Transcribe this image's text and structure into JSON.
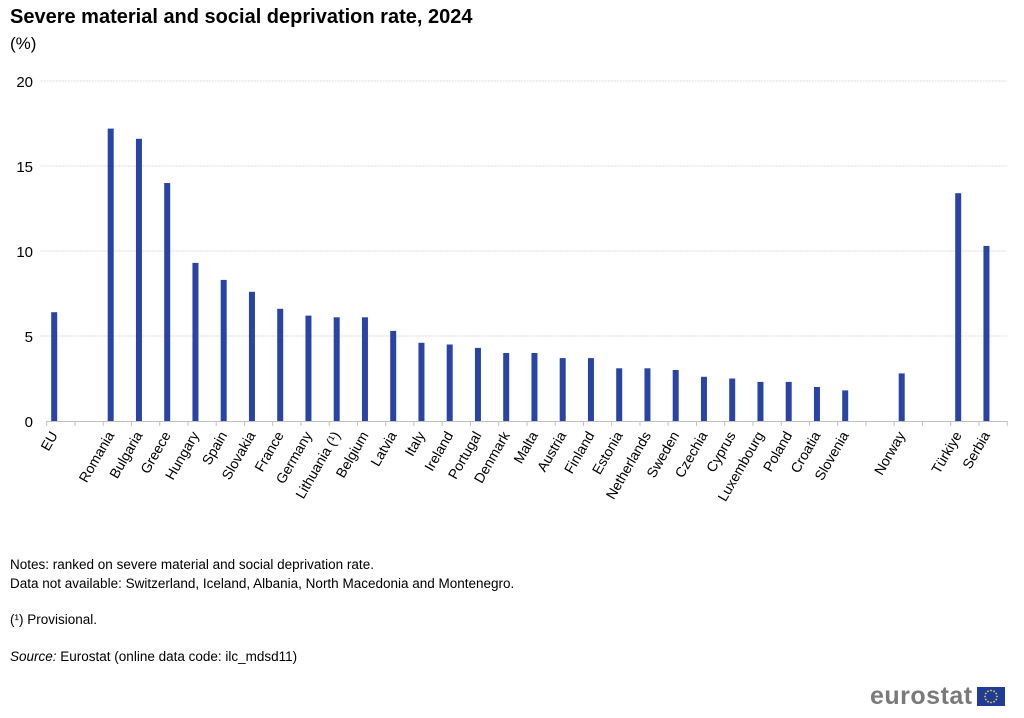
{
  "chart_data": {
    "type": "bar",
    "title": "Severe material and social deprivation rate, 2024",
    "subtitle": "(%)",
    "categories": [
      "EU",
      "",
      "Romania",
      "Bulgaria",
      "Greece",
      "Hungary",
      "Spain",
      "Slovakia",
      "France",
      "Germany",
      "Lithuania (¹)",
      "Belgium",
      "Latvia",
      "Italy",
      "Ireland",
      "Portugal",
      "Denmark",
      "Malta",
      "Austria",
      "Finland",
      "Estonia",
      "Netherlands",
      "Sweden",
      "Czechia",
      "Cyprus",
      "Luxembourg",
      "Poland",
      "Croatia",
      "Slovenia",
      "",
      "Norway",
      "",
      "Türkiye",
      "Serbia"
    ],
    "values": [
      6.4,
      null,
      17.2,
      16.6,
      14.0,
      9.3,
      8.3,
      7.6,
      6.6,
      6.2,
      6.1,
      6.1,
      5.3,
      4.6,
      4.5,
      4.3,
      4.0,
      4.0,
      3.7,
      3.7,
      3.1,
      3.1,
      3.0,
      2.6,
      2.5,
      2.3,
      2.3,
      2.0,
      1.8,
      null,
      2.8,
      null,
      13.4,
      10.3
    ],
    "ylim": [
      0,
      20
    ],
    "yticks": [
      "0",
      "5",
      "10",
      "15",
      "20"
    ],
    "grid": true,
    "bar_color": "#2a44a6"
  },
  "notes": {
    "line1": "Notes: ranked on severe material and social deprivation rate.",
    "line2": "Data not available: Switzerland, Iceland, Albania, North Macedonia and Montenegro.",
    "provisional": "(¹) Provisional.",
    "source_label": "Source:",
    "source_text": " Eurostat (online data code: ilc_mdsd11)"
  },
  "logo": {
    "text": "eurostat"
  }
}
